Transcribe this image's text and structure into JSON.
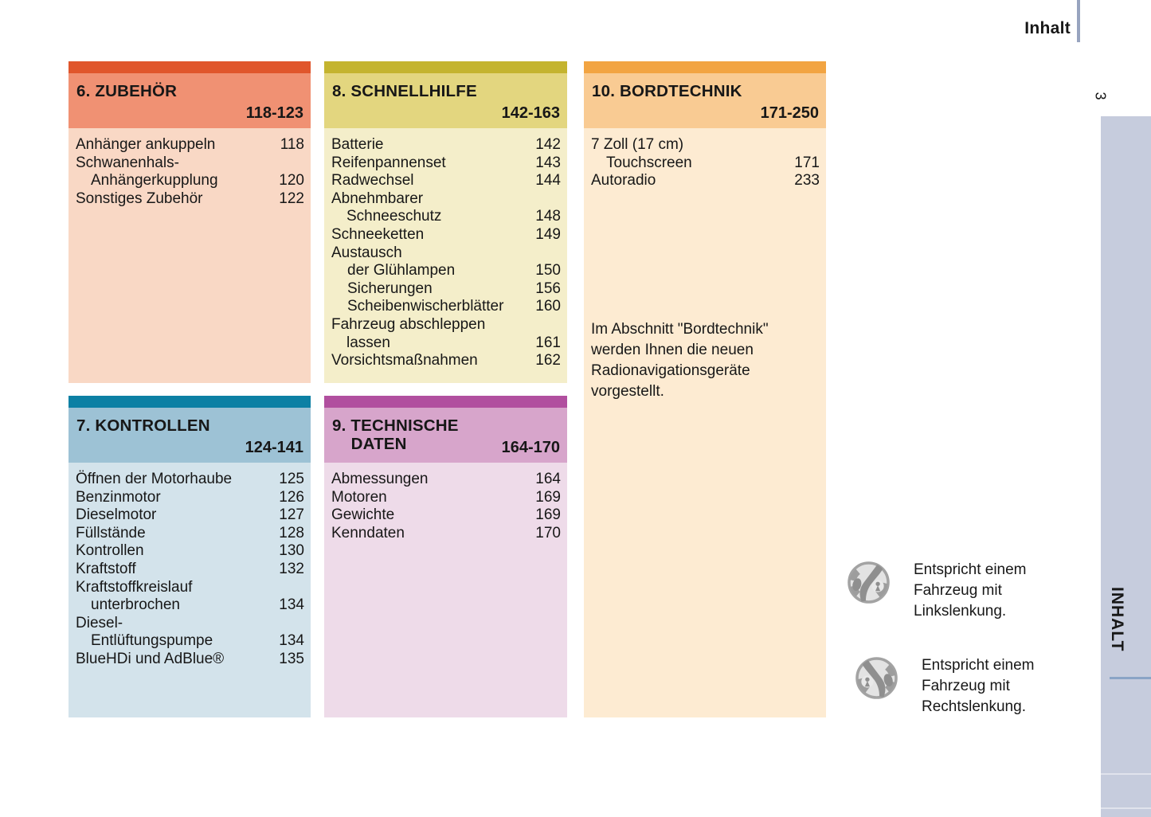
{
  "page": {
    "title": "Inhalt",
    "page_number": "3",
    "side_tab": "INHALT"
  },
  "colors": {
    "text": "#171717",
    "header_rule": "#98a4bf",
    "sidebar": "#c6ccdd",
    "sidebar_divider": "#8aa4c6"
  },
  "sections": [
    {
      "number": "6",
      "title": "6. ZUBEHÖR",
      "range": "118-123",
      "colors": {
        "strip": "#e0562c",
        "header": "#f09173",
        "body": "#f9d8c5"
      },
      "entries": [
        {
          "lines": [
            "Anhänger ankuppeln"
          ],
          "page": "118"
        },
        {
          "lines": [
            "Schwanenhals-",
            "Anhängerkupplung"
          ],
          "page": "120"
        },
        {
          "lines": [
            "Sonstiges Zubehör"
          ],
          "page": "122"
        }
      ]
    },
    {
      "number": "7",
      "title": "7. KONTROLLEN",
      "range": "124-141",
      "colors": {
        "strip": "#0c80a4",
        "header": "#9dc2d5",
        "body": "#d3e3eb"
      },
      "entries": [
        {
          "lines": [
            "Öffnen der Motorhaube"
          ],
          "page": "125"
        },
        {
          "lines": [
            "Benzinmotor"
          ],
          "page": "126"
        },
        {
          "lines": [
            "Dieselmotor"
          ],
          "page": "127"
        },
        {
          "lines": [
            "Füllstände"
          ],
          "page": "128"
        },
        {
          "lines": [
            "Kontrollen"
          ],
          "page": "130"
        },
        {
          "lines": [
            "Kraftstoff"
          ],
          "page": "132"
        },
        {
          "lines": [
            "Kraftstoffkreislauf",
            "unterbrochen"
          ],
          "page": "134"
        },
        {
          "lines": [
            "Diesel-",
            "Entlüftungspumpe"
          ],
          "page": "134"
        },
        {
          "lines": [
            "BlueHDi und AdBlue®"
          ],
          "page": "135"
        }
      ]
    },
    {
      "number": "8",
      "title": "8. SCHNELLHILFE",
      "range": "142-163",
      "colors": {
        "strip": "#c4b42f",
        "header": "#e3d67f",
        "body": "#f4eeca"
      },
      "entries": [
        {
          "lines": [
            "Batterie"
          ],
          "page": "142"
        },
        {
          "lines": [
            "Reifenpannenset"
          ],
          "page": "143"
        },
        {
          "lines": [
            "Radwechsel"
          ],
          "page": "144"
        },
        {
          "lines": [
            "Abnehmbarer",
            "Schneeschutz"
          ],
          "page": "148"
        },
        {
          "lines": [
            "Schneeketten"
          ],
          "page": "149"
        },
        {
          "lines": [
            "Austausch"
          ],
          "page": ""
        },
        {
          "lines": [
            "der Glühlampen"
          ],
          "page": "150",
          "indent": true
        },
        {
          "lines": [
            "Sicherungen"
          ],
          "page": "156",
          "indent": true
        },
        {
          "lines": [
            "Scheibenwischerblätter"
          ],
          "page": "160",
          "indent": true
        },
        {
          "lines": [
            "Fahrzeug abschleppen",
            "lassen"
          ],
          "page": "161"
        },
        {
          "lines": [
            "Vorsichtsmaßnahmen"
          ],
          "page": "162"
        }
      ]
    },
    {
      "number": "9",
      "title": "9. TECHNISCHE\n    DATEN",
      "range": "164-170",
      "colors": {
        "strip": "#b14f9f",
        "header": "#d7a5cb",
        "body": "#eedbe9"
      },
      "entries": [
        {
          "lines": [
            "Abmessungen"
          ],
          "page": "164"
        },
        {
          "lines": [
            "Motoren"
          ],
          "page": "169"
        },
        {
          "lines": [
            "Gewichte"
          ],
          "page": "169"
        },
        {
          "lines": [
            "Kenndaten"
          ],
          "page": "170"
        }
      ]
    },
    {
      "number": "10",
      "title": "10. BORDTECHNIK",
      "range": "171-250",
      "colors": {
        "strip": "#f2a442",
        "header": "#f9cb93",
        "body": "#fdebd2"
      },
      "entries": [
        {
          "lines": [
            "7 Zoll (17 cm)",
            "Touchscreen"
          ],
          "page": "171"
        },
        {
          "lines": [
            "Autoradio"
          ],
          "page": "233"
        }
      ],
      "note": "Im Abschnitt \"Bordtechnik\" werden Ihnen die neuen Radionavigationsgeräte vorgestellt."
    }
  ],
  "legend": [
    {
      "icon": "steering-wheel-left-hand-drive-icon",
      "lines": [
        "Entspricht einem",
        "Fahrzeug mit",
        "Linkslenkung."
      ]
    },
    {
      "icon": "steering-wheel-right-hand-drive-icon",
      "lines": [
        "Entspricht einem",
        "Fahrzeug mit",
        "Rechtslenkung."
      ]
    }
  ]
}
